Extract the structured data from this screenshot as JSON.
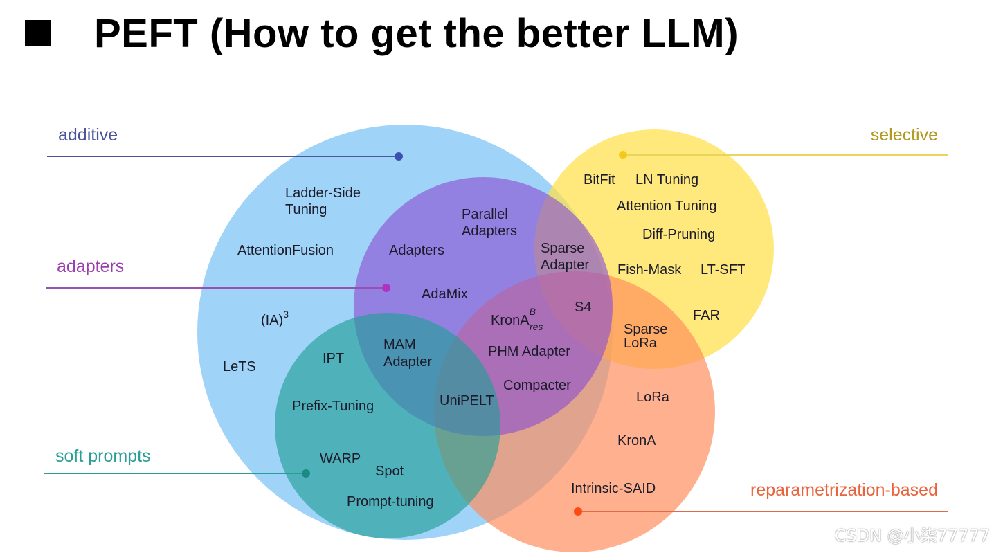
{
  "title": "PEFT (How to get the better LLM)",
  "colors": {
    "additive": "#5fb6f3",
    "selective": "#ffe04a",
    "adapters": "#8b4fd3",
    "soft_prompts": "#1f9e96",
    "reparam": "#ff8c5a"
  },
  "categories": {
    "additive": "additive",
    "selective": "selective",
    "adapters": "adapters",
    "soft_prompts": "soft prompts",
    "reparam": "reparametrization-based"
  },
  "methods": {
    "ladder_side_1": "Ladder-Side",
    "ladder_side_2": "Tuning",
    "attention_fusion": "AttentionFusion",
    "ia3_base": "(IA)",
    "ia3_sup": "3",
    "lets": "LeTS",
    "parallel_1": "Parallel",
    "parallel_2": "Adapters",
    "adapters": "Adapters",
    "adamix": "AdaMix",
    "sparse_adapter_1": "Sparse",
    "sparse_adapter_2": "Adapter",
    "s4": "S4",
    "krona_res_base": "KronA",
    "krona_res_sup": "B",
    "krona_res_sub": "res",
    "mam_1": "MAM",
    "mam_2": "Adapter",
    "ipt": "IPT",
    "phm": "PHM Adapter",
    "compacter": "Compacter",
    "unipelt": "UniPELT",
    "prefix_tuning": "Prefix-Tuning",
    "warp": "WARP",
    "spot": "Spot",
    "prompt_tuning": "Prompt-tuning",
    "bitfit": "BitFit",
    "ln_tuning": "LN Tuning",
    "attention_tuning": "Attention Tuning",
    "diff_pruning": "Diff-Pruning",
    "fish_mask": "Fish-Mask",
    "lt_sft": "LT-SFT",
    "far": "FAR",
    "sparse_lora_1": "Sparse",
    "sparse_lora_2": "LoRa",
    "lora": "LoRa",
    "krona": "KronA",
    "intrinsic_said": "Intrinsic-SAID"
  },
  "watermark": "CSDN @小柒77777"
}
